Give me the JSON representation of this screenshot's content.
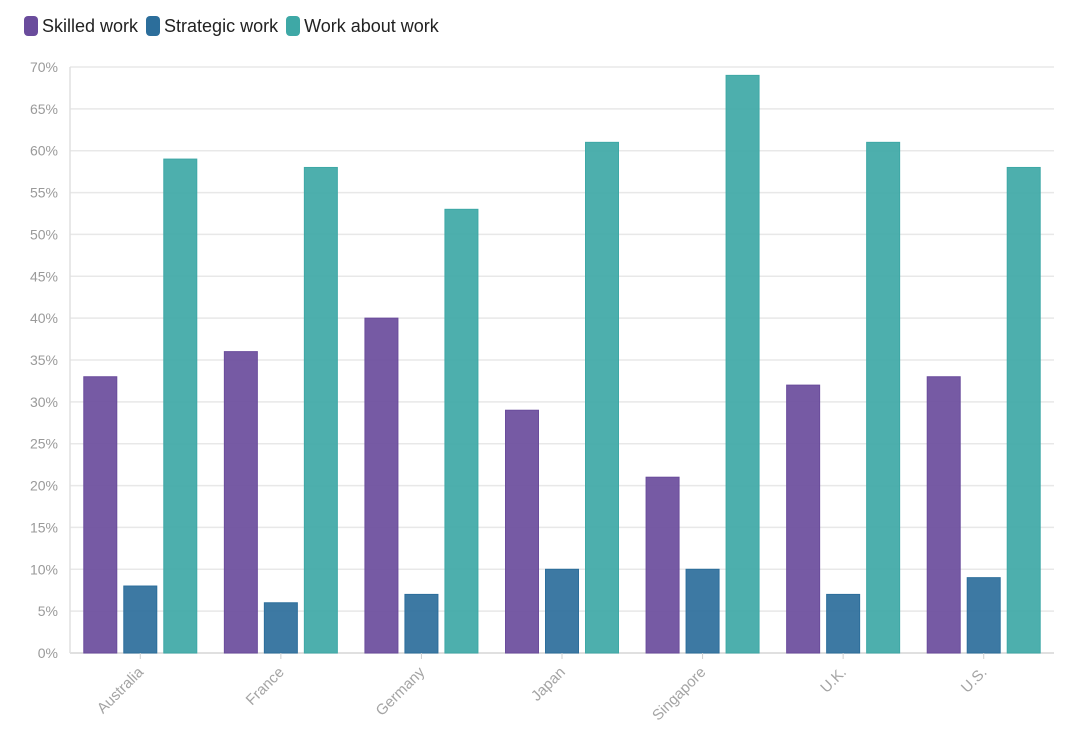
{
  "chart_data": {
    "type": "bar",
    "categories": [
      "Australia",
      "France",
      "Germany",
      "Japan",
      "Singapore",
      "U.K.",
      "U.S."
    ],
    "series": [
      {
        "name": "Skilled work",
        "color": "#6a4c9c",
        "values": [
          33,
          36,
          40,
          29,
          21,
          32,
          33
        ]
      },
      {
        "name": "Strategic work",
        "color": "#2c6e9b",
        "values": [
          8,
          6,
          7,
          10,
          10,
          7,
          9
        ]
      },
      {
        "name": "Work about work",
        "color": "#3ea8a6",
        "values": [
          59,
          58,
          53,
          61,
          69,
          61,
          58
        ]
      }
    ],
    "ylim": [
      0,
      70
    ],
    "yticks": [
      0,
      5,
      10,
      15,
      20,
      25,
      30,
      35,
      40,
      45,
      50,
      55,
      60,
      65,
      70
    ],
    "ytick_suffix": "%",
    "grid": true,
    "legend_position": "top-left",
    "title": "",
    "xlabel": "",
    "ylabel": ""
  }
}
